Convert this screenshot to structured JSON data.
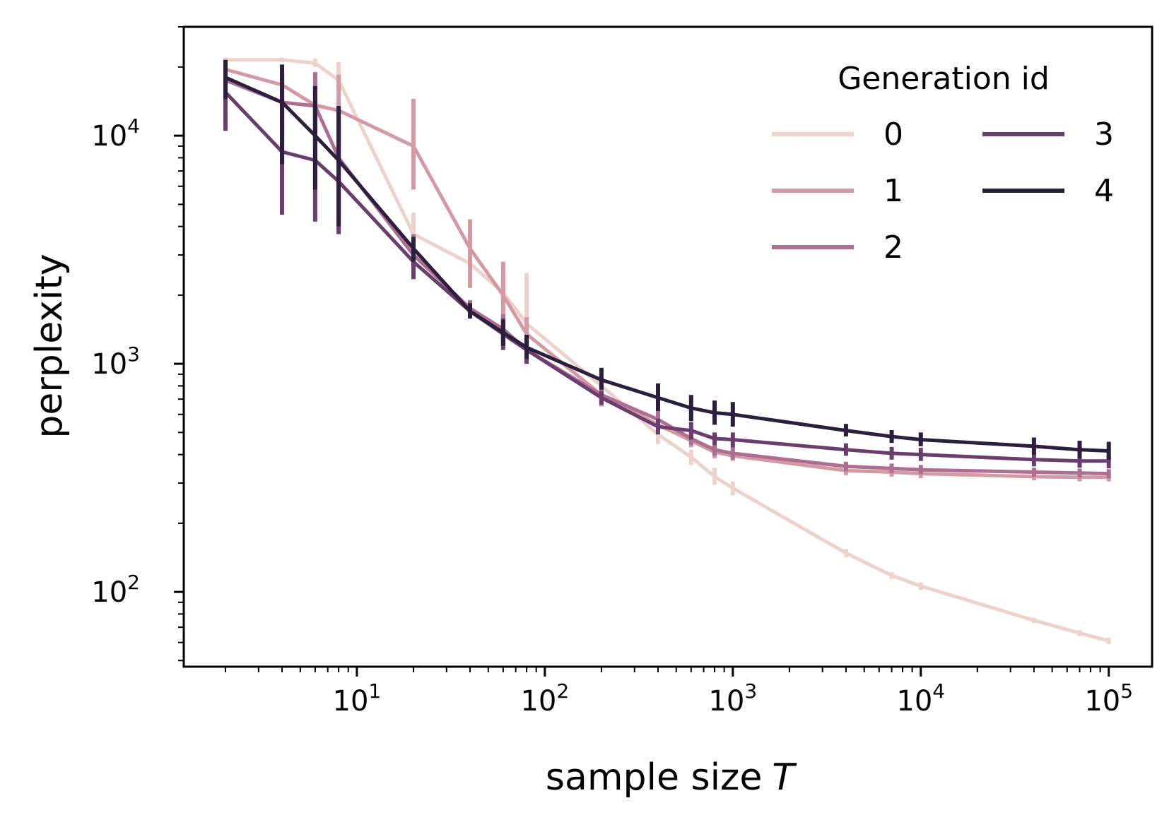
{
  "chart_data": {
    "type": "line",
    "title": "",
    "xlabel": "sample size",
    "xlabel_var": "T",
    "ylabel": "perplexity",
    "xscale": "log",
    "yscale": "log",
    "xlim": [
      1.2,
      170000
    ],
    "ylim": [
      47,
      30000
    ],
    "x_major_ticks": [
      {
        "value": 10,
        "base": "10",
        "exp": "1"
      },
      {
        "value": 100,
        "base": "10",
        "exp": "2"
      },
      {
        "value": 1000,
        "base": "10",
        "exp": "3"
      },
      {
        "value": 10000,
        "base": "10",
        "exp": "4"
      },
      {
        "value": 100000,
        "base": "10",
        "exp": "5"
      }
    ],
    "y_major_ticks": [
      {
        "value": 100,
        "base": "10",
        "exp": "2"
      },
      {
        "value": 1000,
        "base": "10",
        "exp": "3"
      },
      {
        "value": 10000,
        "base": "10",
        "exp": "4"
      }
    ],
    "legend": {
      "title": "Generation id",
      "position": "top-right",
      "columns": 2
    },
    "x": [
      2,
      4,
      6,
      8,
      20,
      40,
      60,
      80,
      200,
      400,
      600,
      800,
      1000,
      4000,
      7000,
      10000,
      40000,
      70000,
      100000
    ],
    "series": [
      {
        "name": "0",
        "color": "#ecd2ca",
        "values": [
          21500,
          21500,
          20800,
          17500,
          3700,
          2750,
          2050,
          1500,
          800,
          490,
          390,
          320,
          285,
          148,
          118,
          106,
          75,
          66,
          61
        ],
        "err_low": [
          21000,
          21000,
          20000,
          15000,
          3400,
          2550,
          1800,
          1250,
          720,
          445,
          360,
          295,
          265,
          142,
          114,
          102,
          73,
          64,
          59
        ],
        "err_high": [
          22000,
          22000,
          21800,
          21000,
          4600,
          3000,
          2350,
          2500,
          900,
          540,
          420,
          350,
          305,
          154,
          122,
          110,
          77,
          68,
          63
        ]
      },
      {
        "name": "1",
        "color": "#d49aa4",
        "values": [
          19500,
          16700,
          13600,
          12900,
          9000,
          3200,
          2000,
          1350,
          730,
          540,
          460,
          410,
          395,
          340,
          335,
          330,
          320,
          318,
          318
        ],
        "err_low": [
          18500,
          13500,
          10500,
          9500,
          5800,
          2150,
          1550,
          1100,
          650,
          490,
          430,
          385,
          375,
          325,
          320,
          315,
          308,
          305,
          305
        ],
        "err_high": [
          20500,
          19500,
          17500,
          18500,
          14500,
          4300,
          2800,
          1600,
          830,
          600,
          495,
          440,
          420,
          358,
          350,
          345,
          335,
          333,
          333
        ]
      },
      {
        "name": "2",
        "color": "#ad6e92",
        "values": [
          17500,
          14000,
          13500,
          8000,
          3000,
          1750,
          1420,
          1150,
          730,
          570,
          470,
          420,
          405,
          355,
          348,
          343,
          335,
          332,
          330
        ],
        "err_low": [
          15500,
          10000,
          9000,
          4500,
          2400,
          1600,
          1200,
          1000,
          660,
          520,
          440,
          395,
          380,
          338,
          332,
          328,
          320,
          317,
          315
        ],
        "err_high": [
          19500,
          18500,
          19000,
          13000,
          3700,
          1900,
          1650,
          1330,
          810,
          620,
          505,
          450,
          430,
          372,
          365,
          360,
          350,
          347,
          345
        ]
      },
      {
        "name": "3",
        "color": "#6a3d6e",
        "values": [
          15500,
          8500,
          7800,
          6300,
          2800,
          1700,
          1350,
          1150,
          710,
          530,
          510,
          470,
          465,
          420,
          405,
          400,
          380,
          375,
          375
        ],
        "err_low": [
          10500,
          4500,
          4200,
          3700,
          2350,
          1580,
          1150,
          1000,
          660,
          490,
          465,
          440,
          430,
          395,
          380,
          375,
          355,
          350,
          348
        ],
        "err_high": [
          20500,
          14500,
          14000,
          11500,
          3200,
          1850,
          1580,
          1320,
          760,
          575,
          555,
          500,
          500,
          448,
          432,
          428,
          405,
          400,
          400
        ]
      },
      {
        "name": "4",
        "color": "#2c1e3d",
        "values": [
          18000,
          14000,
          10000,
          7800,
          3200,
          1700,
          1370,
          1180,
          850,
          710,
          640,
          610,
          600,
          510,
          480,
          465,
          435,
          420,
          415
        ],
        "err_low": [
          14500,
          7500,
          5800,
          4000,
          2800,
          1580,
          1200,
          1050,
          770,
          620,
          560,
          540,
          530,
          480,
          450,
          435,
          400,
          385,
          380
        ],
        "err_high": [
          21500,
          20500,
          16500,
          13500,
          3600,
          1840,
          1560,
          1340,
          960,
          820,
          730,
          690,
          680,
          545,
          512,
          500,
          475,
          460,
          455
        ]
      }
    ]
  }
}
